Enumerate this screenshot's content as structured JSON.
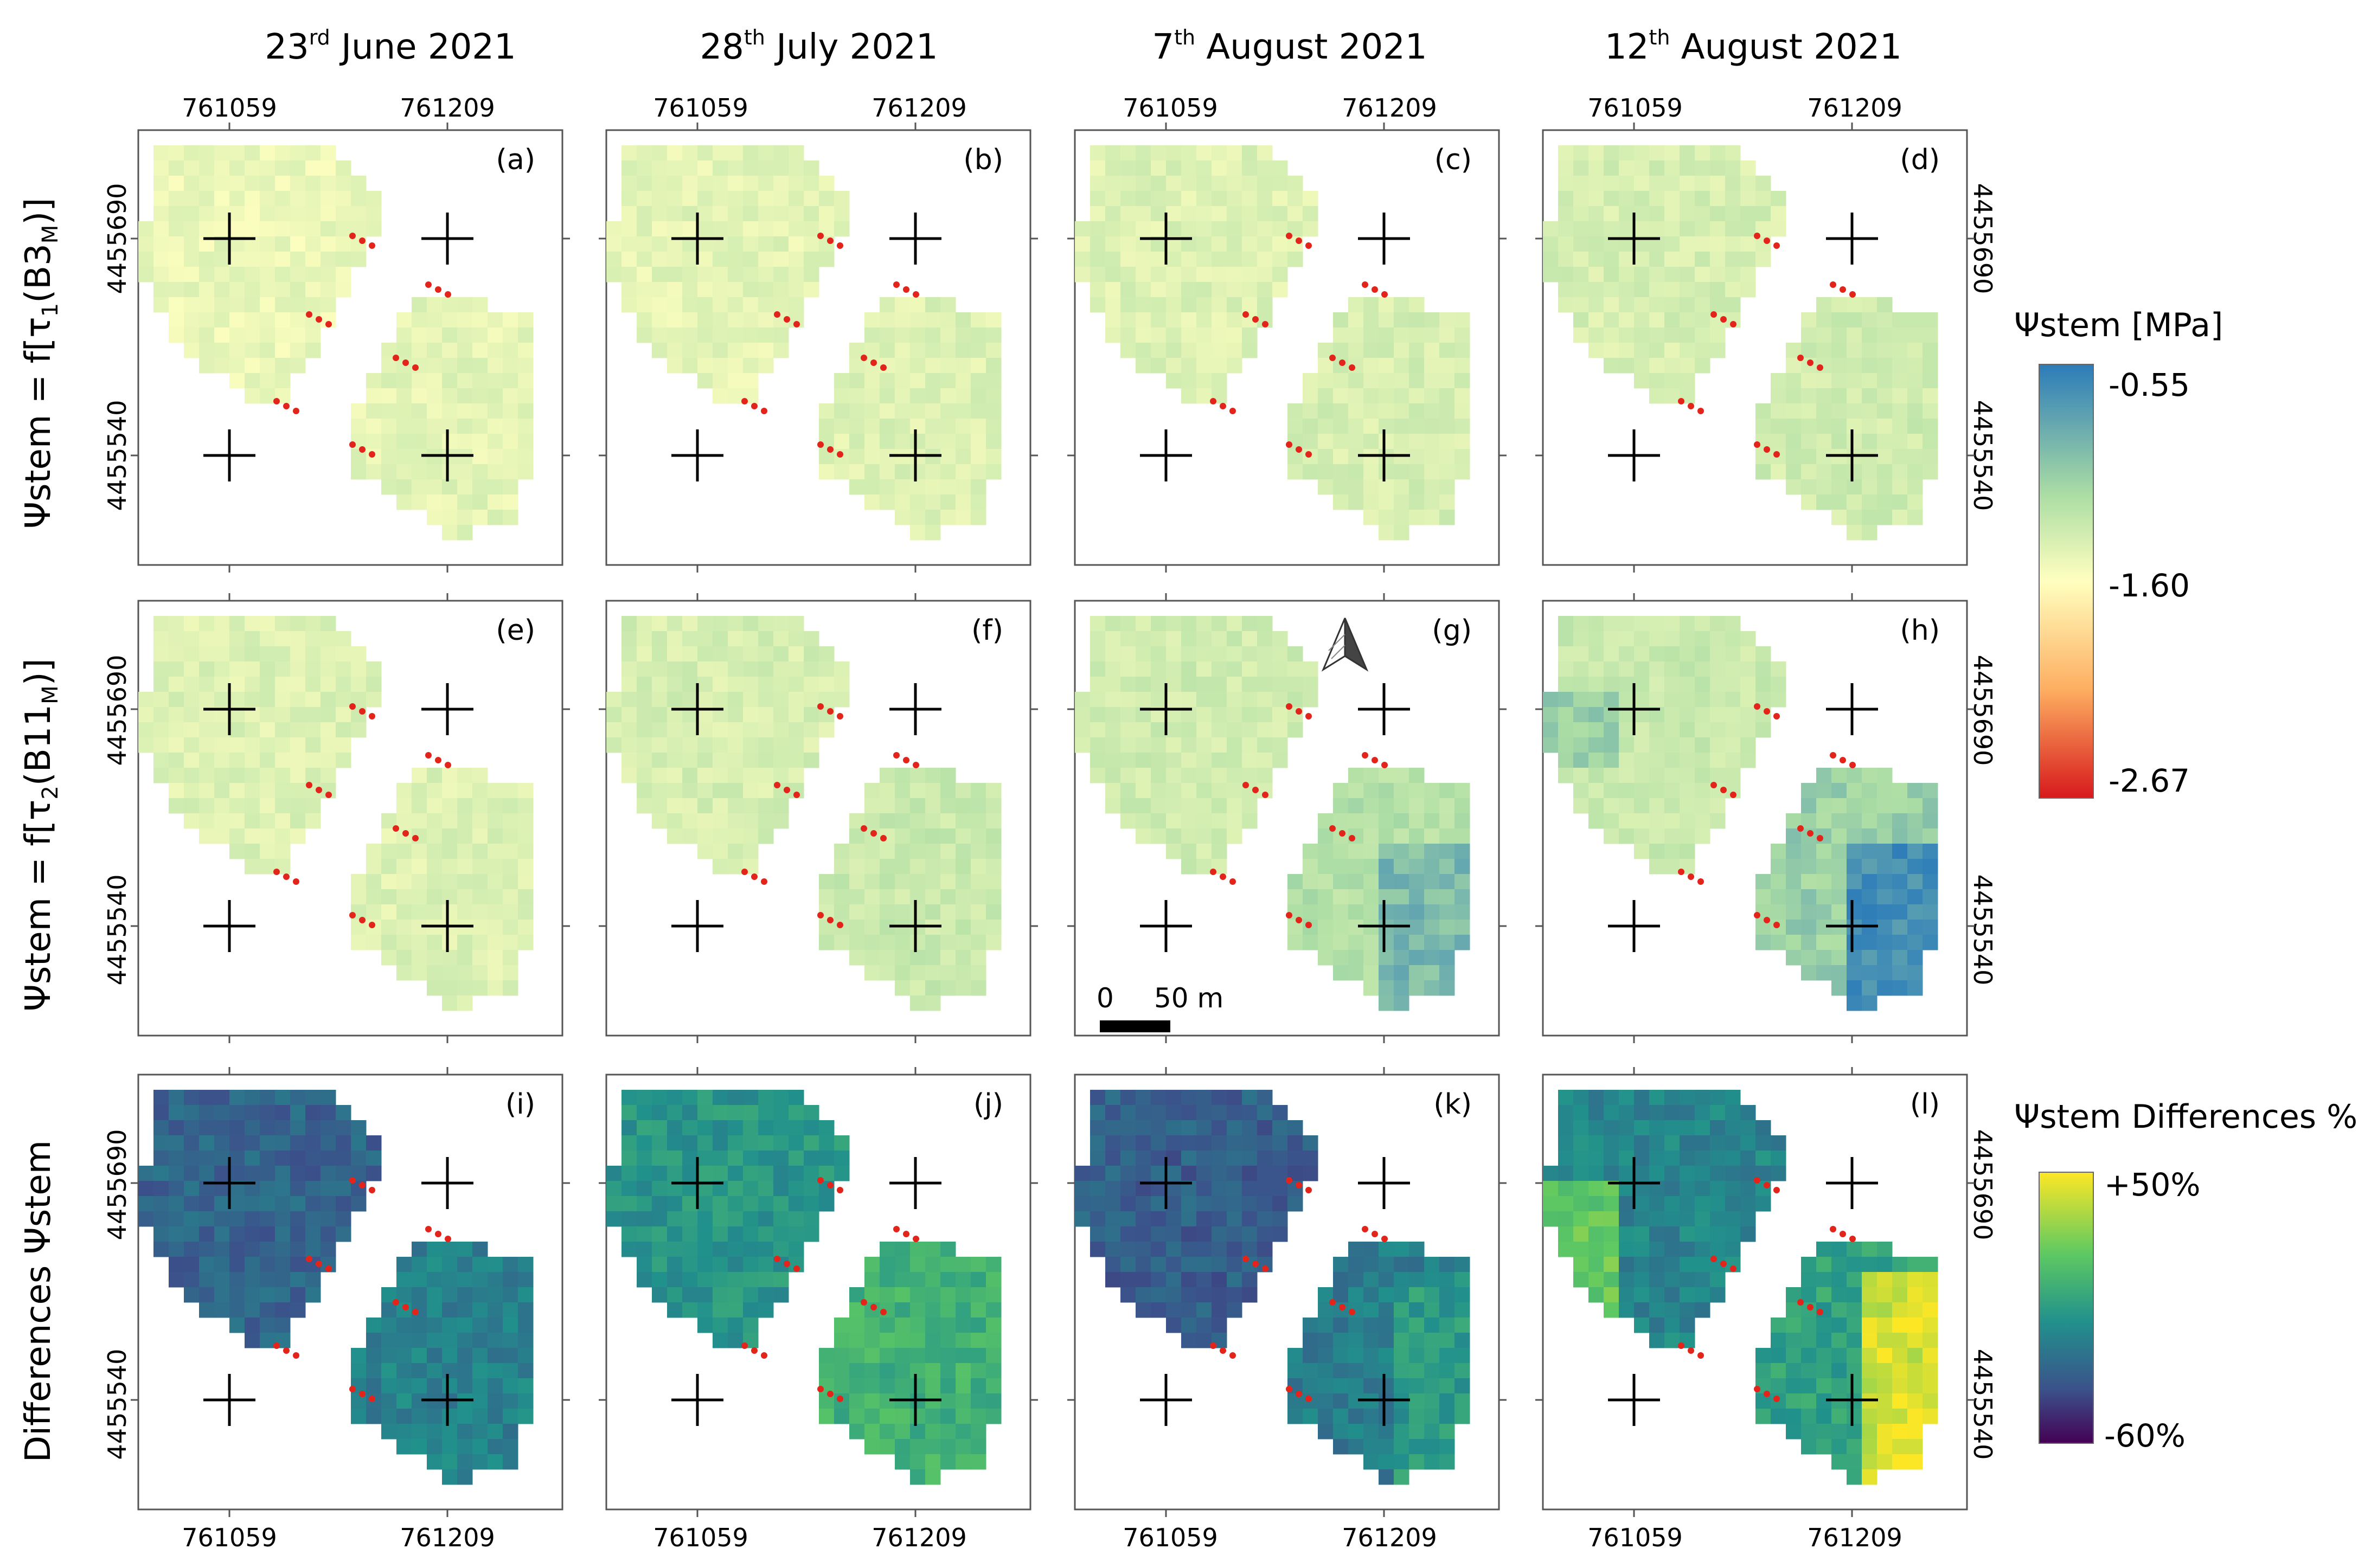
{
  "figure": {
    "dates": [
      {
        "day": "23",
        "sup": "rd",
        "rest": "June 2021"
      },
      {
        "day": "28",
        "sup": "th",
        "rest": "July 2021"
      },
      {
        "day": "7",
        "sup": "th",
        "rest": "August 2021"
      },
      {
        "day": "12",
        "sup": "th",
        "rest": "August 2021"
      }
    ],
    "x_coords": [
      "761059",
      "761209"
    ],
    "y_coords": [
      "4455690",
      "4455540"
    ],
    "row_labels": [
      {
        "prefix": "Ψstem = f[τ",
        "sub1": "1",
        "mid": "(B3",
        "sub2": "M",
        "suffix": ")]"
      },
      {
        "prefix": "Ψstem = f[τ",
        "sub1": "2",
        "mid": "(B11",
        "sub2": "M",
        "suffix": ")]"
      },
      {
        "prefix": "Differences Ψstem",
        "sub1": "",
        "mid": "",
        "sub2": "",
        "suffix": ""
      }
    ],
    "panel_labels": [
      "(a)",
      "(b)",
      "(c)",
      "(d)",
      "(e)",
      "(f)",
      "(g)",
      "(h)",
      "(i)",
      "(j)",
      "(k)",
      "(l)"
    ],
    "legend_stem": {
      "title": "Ψstem [MPa]",
      "ticks": [
        "-0.55",
        "-1.60",
        "-2.67"
      ],
      "colors": [
        "#2b7bb9",
        "#abdda4",
        "#ffffbf",
        "#fdae61",
        "#d7191c"
      ]
    },
    "legend_diff": {
      "title": "Ψstem Differences %",
      "ticks": [
        "+50%",
        "-60%"
      ],
      "colors": [
        "#fde725",
        "#5ec962",
        "#21918c",
        "#3b528b",
        "#440154"
      ]
    },
    "scale_bar": {
      "zero": "0",
      "distance": "50 m"
    },
    "north_arrow": "north-arrow"
  }
}
